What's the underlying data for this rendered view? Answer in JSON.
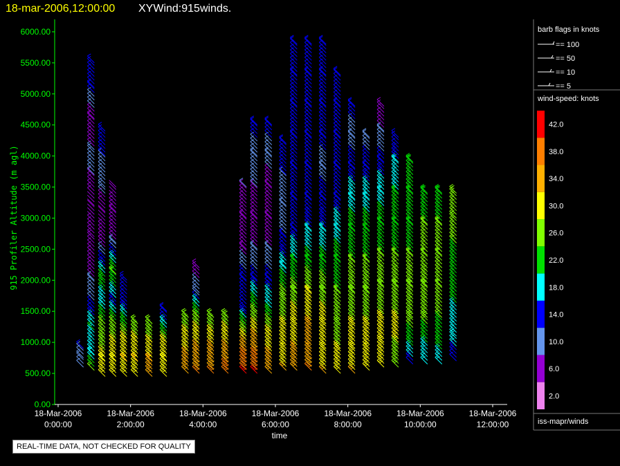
{
  "header": {
    "date": "18-mar-2006,12:00:00",
    "product": "XYWind:915winds."
  },
  "quality_note": "REAL-TIME DATA, NOT CHECKED FOR QUALITY",
  "legend": {
    "barb_title": "barb flags in knots",
    "barb_items": [
      "== 100",
      "== 50",
      "== 10",
      "== 5"
    ],
    "speed_title": "wind-speed: knots",
    "speed_scale": [
      {
        "label": "42.0",
        "color": "#ff0000"
      },
      {
        "label": "38.0",
        "color": "#ff7f00"
      },
      {
        "label": "34.0",
        "color": "#ffb000"
      },
      {
        "label": "30.0",
        "color": "#ffff00"
      },
      {
        "label": "26.0",
        "color": "#80ff00"
      },
      {
        "label": "22.0",
        "color": "#00e000"
      },
      {
        "label": "18.0",
        "color": "#00ffff"
      },
      {
        "label": "14.0",
        "color": "#0000ff"
      },
      {
        "label": "10.0",
        "color": "#6495ed"
      },
      {
        "label": "6.0",
        "color": "#9400d3"
      },
      {
        "label": "2.0",
        "color": "#ee82ee"
      }
    ],
    "source": "iss-mapr/winds"
  },
  "chart_data": {
    "type": "scatter",
    "ylabel": "915 Profiler Altitude (m agl)",
    "xlabel": "time",
    "yticks": [
      "0.00",
      "500.00",
      "1000.00",
      "1500.00",
      "2000.00",
      "2500.00",
      "3000.00",
      "3500.00",
      "4000.00",
      "4500.00",
      "5000.00",
      "5500.00",
      "6000.00"
    ],
    "ylim": [
      0,
      6200
    ],
    "xlim": [
      0,
      12
    ],
    "xticks": [
      {
        "date": "18-Mar-2006",
        "time": "0:00:00"
      },
      {
        "date": "18-Mar-2006",
        "time": "2:00:00"
      },
      {
        "date": "18-Mar-2006",
        "time": "4:00:00"
      },
      {
        "date": "18-Mar-2006",
        "time": "6:00:00"
      },
      {
        "date": "18-Mar-2006",
        "time": "8:00:00"
      },
      {
        "date": "18-Mar-2006",
        "time": "10:00:00"
      },
      {
        "date": "18-Mar-2006",
        "time": "12:00:00"
      }
    ],
    "series": [
      {
        "x": 0.7,
        "y": [
          [
            600,
            10
          ],
          [
            750,
            10
          ],
          [
            900,
            12
          ]
        ]
      },
      {
        "x": 1.0,
        "y": [
          [
            550,
            24
          ],
          [
            800,
            18
          ],
          [
            1200,
            20
          ],
          [
            1500,
            14
          ],
          [
            2000,
            8
          ],
          [
            2700,
            6
          ],
          [
            3200,
            4
          ],
          [
            3700,
            8
          ],
          [
            4100,
            8
          ],
          [
            4600,
            6
          ],
          [
            5100,
            14
          ],
          [
            5500,
            14
          ]
        ]
      },
      {
        "x": 1.3,
        "y": [
          [
            450,
            28
          ],
          [
            700,
            30
          ],
          [
            1000,
            26
          ],
          [
            1300,
            24
          ],
          [
            1600,
            18
          ],
          [
            2000,
            22
          ],
          [
            2600,
            6
          ],
          [
            3100,
            4
          ],
          [
            3500,
            10
          ],
          [
            4000,
            12
          ],
          [
            4400,
            14
          ]
        ]
      },
      {
        "x": 1.6,
        "y": [
          [
            450,
            28
          ],
          [
            700,
            30
          ],
          [
            1000,
            28
          ],
          [
            1300,
            24
          ],
          [
            1600,
            14
          ],
          [
            2100,
            24
          ],
          [
            2600,
            8
          ],
          [
            3100,
            6
          ],
          [
            3500,
            4
          ]
        ]
      },
      {
        "x": 1.9,
        "y": [
          [
            450,
            30
          ],
          [
            700,
            32
          ],
          [
            1000,
            30
          ],
          [
            1300,
            22
          ],
          [
            1600,
            14
          ],
          [
            2000,
            14
          ]
        ]
      },
      {
        "x": 2.2,
        "y": [
          [
            450,
            30
          ],
          [
            700,
            32
          ],
          [
            1000,
            30
          ],
          [
            1300,
            24
          ]
        ]
      },
      {
        "x": 2.6,
        "y": [
          [
            450,
            32
          ],
          [
            700,
            32
          ],
          [
            1000,
            28
          ],
          [
            1300,
            24
          ]
        ]
      },
      {
        "x": 3.0,
        "y": [
          [
            450,
            30
          ],
          [
            700,
            30
          ],
          [
            1000,
            28
          ],
          [
            1300,
            16
          ],
          [
            1500,
            12
          ]
        ]
      },
      {
        "x": 3.6,
        "y": [
          [
            500,
            34
          ],
          [
            800,
            32
          ],
          [
            1100,
            30
          ],
          [
            1400,
            24
          ]
        ]
      },
      {
        "x": 3.9,
        "y": [
          [
            500,
            36
          ],
          [
            800,
            34
          ],
          [
            1100,
            30
          ],
          [
            1400,
            26
          ],
          [
            1800,
            10
          ],
          [
            2200,
            6
          ]
        ]
      },
      {
        "x": 4.3,
        "y": [
          [
            500,
            36
          ],
          [
            800,
            34
          ],
          [
            1100,
            30
          ],
          [
            1400,
            24
          ]
        ]
      },
      {
        "x": 4.7,
        "y": [
          [
            500,
            38
          ],
          [
            800,
            34
          ],
          [
            1100,
            30
          ],
          [
            1400,
            26
          ]
        ]
      },
      {
        "x": 5.2,
        "y": [
          [
            500,
            40
          ],
          [
            800,
            36
          ],
          [
            1100,
            30
          ],
          [
            1500,
            14
          ],
          [
            2000,
            14
          ],
          [
            2500,
            6
          ],
          [
            3000,
            6
          ],
          [
            3500,
            8
          ]
        ]
      },
      {
        "x": 5.5,
        "y": [
          [
            500,
            40
          ],
          [
            800,
            36
          ],
          [
            1100,
            32
          ],
          [
            1500,
            24
          ],
          [
            2000,
            14
          ],
          [
            2500,
            8
          ],
          [
            3000,
            6
          ],
          [
            3500,
            8
          ],
          [
            4000,
            10
          ],
          [
            4500,
            14
          ]
        ]
      },
      {
        "x": 5.9,
        "y": [
          [
            500,
            34
          ],
          [
            800,
            32
          ],
          [
            1100,
            30
          ],
          [
            1500,
            20
          ],
          [
            2000,
            14
          ],
          [
            2500,
            8
          ],
          [
            3000,
            6
          ],
          [
            3500,
            6
          ],
          [
            4000,
            10
          ],
          [
            4500,
            14
          ]
        ]
      },
      {
        "x": 6.3,
        "y": [
          [
            550,
            32
          ],
          [
            900,
            30
          ],
          [
            1300,
            28
          ],
          [
            1700,
            26
          ],
          [
            2200,
            18
          ],
          [
            2700,
            12
          ],
          [
            3200,
            10
          ],
          [
            3700,
            12
          ],
          [
            4200,
            14
          ]
        ]
      },
      {
        "x": 6.6,
        "y": [
          [
            550,
            34
          ],
          [
            900,
            32
          ],
          [
            1300,
            30
          ],
          [
            1800,
            26
          ],
          [
            2300,
            20
          ],
          [
            2800,
            14
          ],
          [
            3300,
            12
          ],
          [
            3800,
            14
          ],
          [
            4300,
            14
          ],
          [
            4800,
            14
          ],
          [
            5300,
            14
          ],
          [
            5800,
            14
          ]
        ]
      },
      {
        "x": 7.0,
        "y": [
          [
            550,
            36
          ],
          [
            900,
            34
          ],
          [
            1300,
            32
          ],
          [
            1800,
            28
          ],
          [
            2300,
            22
          ],
          [
            2800,
            16
          ],
          [
            3300,
            14
          ],
          [
            3800,
            12
          ],
          [
            4300,
            14
          ],
          [
            4800,
            14
          ],
          [
            5300,
            14
          ],
          [
            5800,
            14
          ]
        ]
      },
      {
        "x": 7.4,
        "y": [
          [
            500,
            32
          ],
          [
            900,
            30
          ],
          [
            1300,
            30
          ],
          [
            1800,
            26
          ],
          [
            2300,
            22
          ],
          [
            2800,
            16
          ],
          [
            3300,
            14
          ],
          [
            3800,
            10
          ],
          [
            4300,
            14
          ],
          [
            4800,
            14
          ],
          [
            5300,
            14
          ],
          [
            5800,
            14
          ]
        ]
      },
      {
        "x": 7.8,
        "y": [
          [
            500,
            30
          ],
          [
            900,
            28
          ],
          [
            1300,
            26
          ],
          [
            1800,
            24
          ],
          [
            2300,
            22
          ],
          [
            2800,
            18
          ],
          [
            3300,
            14
          ],
          [
            3800,
            12
          ],
          [
            4300,
            14
          ],
          [
            4800,
            14
          ],
          [
            5300,
            14
          ]
        ]
      },
      {
        "x": 8.2,
        "y": [
          [
            500,
            32
          ],
          [
            900,
            30
          ],
          [
            1300,
            28
          ],
          [
            1800,
            26
          ],
          [
            2300,
            24
          ],
          [
            2800,
            22
          ],
          [
            3300,
            18
          ],
          [
            3800,
            14
          ],
          [
            4300,
            10
          ],
          [
            4800,
            14
          ]
        ]
      },
      {
        "x": 8.6,
        "y": [
          [
            550,
            30
          ],
          [
            900,
            28
          ],
          [
            1300,
            28
          ],
          [
            1800,
            26
          ],
          [
            2300,
            24
          ],
          [
            2800,
            22
          ],
          [
            3300,
            18
          ],
          [
            3800,
            14
          ],
          [
            4300,
            10
          ]
        ]
      },
      {
        "x": 9.0,
        "y": [
          [
            600,
            28
          ],
          [
            1000,
            30
          ],
          [
            1400,
            28
          ],
          [
            1900,
            26
          ],
          [
            2400,
            24
          ],
          [
            2900,
            22
          ],
          [
            3400,
            18
          ],
          [
            3900,
            14
          ],
          [
            4400,
            8
          ],
          [
            4800,
            6
          ]
        ]
      },
      {
        "x": 9.4,
        "y": [
          [
            600,
            26
          ],
          [
            1000,
            28
          ],
          [
            1400,
            28
          ],
          [
            1900,
            26
          ],
          [
            2400,
            24
          ],
          [
            2900,
            22
          ],
          [
            3400,
            20
          ],
          [
            3900,
            16
          ],
          [
            4300,
            14
          ]
        ]
      },
      {
        "x": 9.8,
        "y": [
          [
            650,
            14
          ],
          [
            1000,
            22
          ],
          [
            1400,
            26
          ],
          [
            1900,
            26
          ],
          [
            2400,
            24
          ],
          [
            2900,
            22
          ],
          [
            3400,
            20
          ],
          [
            3900,
            20
          ]
        ]
      },
      {
        "x": 10.2,
        "y": [
          [
            650,
            16
          ],
          [
            1000,
            20
          ],
          [
            1400,
            26
          ],
          [
            1900,
            26
          ],
          [
            2400,
            24
          ],
          [
            2900,
            24
          ],
          [
            3400,
            22
          ]
        ]
      },
      {
        "x": 10.6,
        "y": [
          [
            650,
            16
          ],
          [
            1000,
            22
          ],
          [
            1400,
            24
          ],
          [
            1900,
            24
          ],
          [
            2400,
            24
          ],
          [
            2900,
            24
          ],
          [
            3400,
            22
          ]
        ]
      },
      {
        "x": 11.0,
        "y": [
          [
            700,
            14
          ],
          [
            1100,
            18
          ],
          [
            2600,
            24
          ],
          [
            3000,
            24
          ],
          [
            3400,
            24
          ]
        ]
      }
    ]
  }
}
